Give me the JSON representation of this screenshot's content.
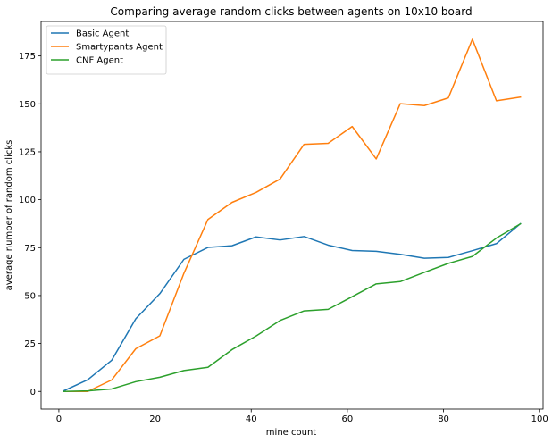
{
  "chart_data": {
    "type": "line",
    "title": "Comparing average random clicks between agents on 10x10 board",
    "xlabel": "mine count",
    "ylabel": "average number of random clicks",
    "xlim": [
      -3.7,
      100.7
    ],
    "ylim": [
      -9.2,
      193.0
    ],
    "xticks": [
      0,
      20,
      40,
      60,
      80,
      100
    ],
    "yticks": [
      0,
      25,
      50,
      75,
      100,
      125,
      150,
      175
    ],
    "grid": false,
    "legend_position": "top-left",
    "x": [
      1,
      6,
      11,
      16,
      21,
      26,
      31,
      36,
      41,
      46,
      51,
      56,
      61,
      66,
      71,
      76,
      81,
      86,
      91,
      96
    ],
    "series": [
      {
        "name": "Basic Agent",
        "color": "#1f77b4",
        "values": [
          0.3,
          6.1,
          16.3,
          37.9,
          51.0,
          68.9,
          75.1,
          76.0,
          80.6,
          79.0,
          80.8,
          76.3,
          73.5,
          73.1,
          71.5,
          69.5,
          69.9,
          73.4,
          77.1,
          87.5
        ]
      },
      {
        "name": "Smartypants Agent",
        "color": "#ff7f0e",
        "values": [
          0.0,
          0.0,
          6.0,
          22.3,
          29.0,
          61.6,
          89.7,
          98.6,
          103.8,
          110.8,
          128.9,
          129.4,
          138.2,
          121.3,
          150.1,
          149.1,
          153.1,
          183.7,
          151.6,
          153.5
        ]
      },
      {
        "name": "CNF Agent",
        "color": "#2ca02c",
        "values": [
          0.0,
          0.3,
          1.3,
          5.1,
          7.4,
          10.9,
          12.6,
          21.8,
          28.9,
          37.0,
          42.0,
          42.8,
          49.4,
          56.1,
          57.3,
          62.1,
          66.8,
          70.4,
          80.0,
          87.4
        ]
      }
    ]
  }
}
